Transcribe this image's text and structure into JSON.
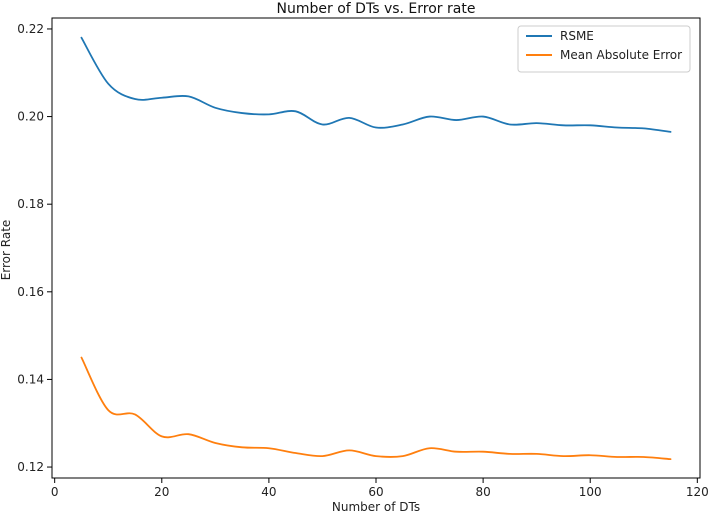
{
  "chart_data": {
    "type": "line",
    "title": "Number of DTs vs. Error rate",
    "xlabel": "Number of DTs",
    "ylabel": "Error Rate",
    "xlim": [
      -0.5,
      120.5
    ],
    "ylim": [
      0.1175,
      0.2225
    ],
    "xticks": [
      0,
      20,
      40,
      60,
      80,
      100,
      120
    ],
    "yticks": [
      0.12,
      0.14,
      0.16,
      0.18,
      0.2,
      0.22
    ],
    "ytick_labels": [
      "0.12",
      "0.14",
      "0.16",
      "0.18",
      "0.20",
      "0.22"
    ],
    "grid": false,
    "legend_position": "top-right",
    "x": [
      5,
      10,
      15,
      20,
      25,
      30,
      35,
      40,
      45,
      50,
      55,
      60,
      65,
      70,
      75,
      80,
      85,
      90,
      95,
      100,
      105,
      110,
      115
    ],
    "series": [
      {
        "name": "RSME",
        "color": "#1f77b4",
        "values": [
          0.218,
          0.2075,
          0.204,
          0.2043,
          0.2046,
          0.202,
          0.2008,
          0.2005,
          0.2012,
          0.1982,
          0.1997,
          0.1975,
          0.1982,
          0.2,
          0.1992,
          0.2,
          0.1982,
          0.1985,
          0.198,
          0.198,
          0.1975,
          0.1973,
          0.1965
        ]
      },
      {
        "name": "Mean Absolute Error",
        "color": "#ff7f0e",
        "values": [
          0.145,
          0.133,
          0.132,
          0.127,
          0.1275,
          0.1255,
          0.1245,
          0.1243,
          0.1232,
          0.1225,
          0.1238,
          0.1225,
          0.1225,
          0.1243,
          0.1235,
          0.1235,
          0.123,
          0.123,
          0.1225,
          0.1227,
          0.1223,
          0.1223,
          0.1218
        ]
      }
    ]
  }
}
